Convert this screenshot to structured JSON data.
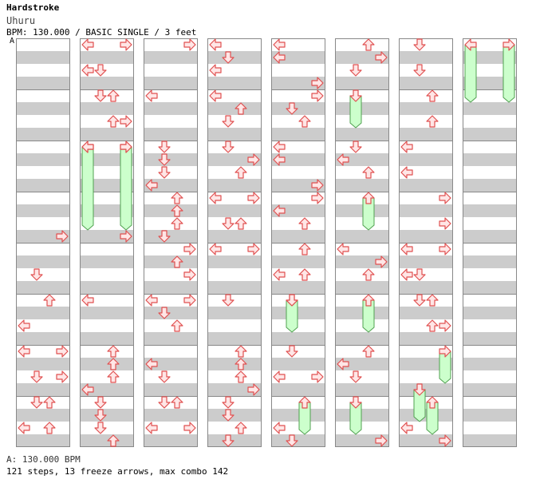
{
  "header": {
    "title": "Hardstroke",
    "subtitle": "Uhuru",
    "bpm_line": "BPM: 130.000 / BASIC SINGLE / 3 feet",
    "marker": "A"
  },
  "footer": {
    "bpm_marker": "A: 130.000 BPM",
    "stats": "121 steps, 13 freeze arrows, max combo 142"
  },
  "colors": {
    "stripe": "#cccccc",
    "border": "#888888",
    "arrow_fill": "#ffe6e6",
    "arrow_stroke": "#e05050",
    "freeze_fill": "#ccffcc",
    "freeze_stroke": "#50a050"
  },
  "chart": {
    "columns": 8,
    "measures_per_column": 8,
    "lanes": [
      "left",
      "down",
      "up",
      "right"
    ],
    "notes": [
      {
        "col": 0,
        "row": 15,
        "dir": "right"
      },
      {
        "col": 0,
        "row": 18,
        "dir": "down"
      },
      {
        "col": 0,
        "row": 20,
        "dir": "up"
      },
      {
        "col": 0,
        "row": 22,
        "dir": "left"
      },
      {
        "col": 0,
        "row": 24,
        "dir": "left"
      },
      {
        "col": 0,
        "row": 24,
        "dir": "right"
      },
      {
        "col": 0,
        "row": 26,
        "dir": "down"
      },
      {
        "col": 0,
        "row": 26,
        "dir": "right"
      },
      {
        "col": 0,
        "row": 28,
        "dir": "down"
      },
      {
        "col": 0,
        "row": 28,
        "dir": "up"
      },
      {
        "col": 0,
        "row": 30,
        "dir": "left"
      },
      {
        "col": 0,
        "row": 30,
        "dir": "up"
      },
      {
        "col": 1,
        "row": 0,
        "dir": "left"
      },
      {
        "col": 1,
        "row": 0,
        "dir": "right"
      },
      {
        "col": 1,
        "row": 2,
        "dir": "left"
      },
      {
        "col": 1,
        "row": 2,
        "dir": "down"
      },
      {
        "col": 1,
        "row": 4,
        "dir": "down"
      },
      {
        "col": 1,
        "row": 4,
        "dir": "up"
      },
      {
        "col": 1,
        "row": 6,
        "dir": "up"
      },
      {
        "col": 1,
        "row": 6,
        "dir": "right"
      },
      {
        "col": 1,
        "row": 8,
        "dir": "left"
      },
      {
        "col": 1,
        "row": 8,
        "dir": "right"
      },
      {
        "col": 1,
        "row": 15,
        "dir": "right"
      },
      {
        "col": 1,
        "row": 20,
        "dir": "left"
      },
      {
        "col": 1,
        "row": 24,
        "dir": "up"
      },
      {
        "col": 1,
        "row": 25,
        "dir": "up"
      },
      {
        "col": 1,
        "row": 26,
        "dir": "up"
      },
      {
        "col": 1,
        "row": 27,
        "dir": "left"
      },
      {
        "col": 1,
        "row": 28,
        "dir": "down"
      },
      {
        "col": 1,
        "row": 29,
        "dir": "down"
      },
      {
        "col": 1,
        "row": 30,
        "dir": "down"
      },
      {
        "col": 1,
        "row": 31,
        "dir": "up"
      },
      {
        "col": 2,
        "row": 0,
        "dir": "right"
      },
      {
        "col": 2,
        "row": 4,
        "dir": "left"
      },
      {
        "col": 2,
        "row": 8,
        "dir": "down"
      },
      {
        "col": 2,
        "row": 9,
        "dir": "down"
      },
      {
        "col": 2,
        "row": 10,
        "dir": "down"
      },
      {
        "col": 2,
        "row": 11,
        "dir": "left"
      },
      {
        "col": 2,
        "row": 12,
        "dir": "up"
      },
      {
        "col": 2,
        "row": 13,
        "dir": "up"
      },
      {
        "col": 2,
        "row": 14,
        "dir": "up"
      },
      {
        "col": 2,
        "row": 15,
        "dir": "down"
      },
      {
        "col": 2,
        "row": 16,
        "dir": "right"
      },
      {
        "col": 2,
        "row": 17,
        "dir": "up"
      },
      {
        "col": 2,
        "row": 18,
        "dir": "right"
      },
      {
        "col": 2,
        "row": 20,
        "dir": "left"
      },
      {
        "col": 2,
        "row": 20,
        "dir": "right"
      },
      {
        "col": 2,
        "row": 21,
        "dir": "down"
      },
      {
        "col": 2,
        "row": 22,
        "dir": "up"
      },
      {
        "col": 2,
        "row": 25,
        "dir": "left"
      },
      {
        "col": 2,
        "row": 26,
        "dir": "down"
      },
      {
        "col": 2,
        "row": 28,
        "dir": "down"
      },
      {
        "col": 2,
        "row": 28,
        "dir": "up"
      },
      {
        "col": 2,
        "row": 30,
        "dir": "left"
      },
      {
        "col": 2,
        "row": 30,
        "dir": "right"
      },
      {
        "col": 3,
        "row": 0,
        "dir": "left"
      },
      {
        "col": 3,
        "row": 1,
        "dir": "down"
      },
      {
        "col": 3,
        "row": 2,
        "dir": "left"
      },
      {
        "col": 3,
        "row": 4,
        "dir": "left"
      },
      {
        "col": 3,
        "row": 5,
        "dir": "up"
      },
      {
        "col": 3,
        "row": 6,
        "dir": "down"
      },
      {
        "col": 3,
        "row": 8,
        "dir": "down"
      },
      {
        "col": 3,
        "row": 9,
        "dir": "right"
      },
      {
        "col": 3,
        "row": 10,
        "dir": "up"
      },
      {
        "col": 3,
        "row": 12,
        "dir": "left"
      },
      {
        "col": 3,
        "row": 12,
        "dir": "right"
      },
      {
        "col": 3,
        "row": 14,
        "dir": "down"
      },
      {
        "col": 3,
        "row": 14,
        "dir": "up"
      },
      {
        "col": 3,
        "row": 16,
        "dir": "left"
      },
      {
        "col": 3,
        "row": 16,
        "dir": "right"
      },
      {
        "col": 3,
        "row": 20,
        "dir": "down"
      },
      {
        "col": 3,
        "row": 24,
        "dir": "up"
      },
      {
        "col": 3,
        "row": 25,
        "dir": "up"
      },
      {
        "col": 3,
        "row": 26,
        "dir": "up"
      },
      {
        "col": 3,
        "row": 27,
        "dir": "right"
      },
      {
        "col": 3,
        "row": 28,
        "dir": "down"
      },
      {
        "col": 3,
        "row": 29,
        "dir": "down"
      },
      {
        "col": 3,
        "row": 30,
        "dir": "up"
      },
      {
        "col": 3,
        "row": 31,
        "dir": "down"
      },
      {
        "col": 4,
        "row": 0,
        "dir": "left"
      },
      {
        "col": 4,
        "row": 1,
        "dir": "left"
      },
      {
        "col": 4,
        "row": 3,
        "dir": "right"
      },
      {
        "col": 4,
        "row": 4,
        "dir": "right"
      },
      {
        "col": 4,
        "row": 5,
        "dir": "down"
      },
      {
        "col": 4,
        "row": 6,
        "dir": "up"
      },
      {
        "col": 4,
        "row": 8,
        "dir": "left"
      },
      {
        "col": 4,
        "row": 9,
        "dir": "left"
      },
      {
        "col": 4,
        "row": 11,
        "dir": "right"
      },
      {
        "col": 4,
        "row": 12,
        "dir": "right"
      },
      {
        "col": 4,
        "row": 13,
        "dir": "left"
      },
      {
        "col": 4,
        "row": 14,
        "dir": "up"
      },
      {
        "col": 4,
        "row": 16,
        "dir": "up"
      },
      {
        "col": 4,
        "row": 18,
        "dir": "left"
      },
      {
        "col": 4,
        "row": 18,
        "dir": "up"
      },
      {
        "col": 4,
        "row": 20,
        "dir": "down"
      },
      {
        "col": 4,
        "row": 24,
        "dir": "down"
      },
      {
        "col": 4,
        "row": 26,
        "dir": "left"
      },
      {
        "col": 4,
        "row": 26,
        "dir": "right"
      },
      {
        "col": 4,
        "row": 30,
        "dir": "left"
      },
      {
        "col": 4,
        "row": 31,
        "dir": "down"
      },
      {
        "col": 5,
        "row": 0,
        "dir": "up"
      },
      {
        "col": 5,
        "row": 1,
        "dir": "right"
      },
      {
        "col": 5,
        "row": 2,
        "dir": "down"
      },
      {
        "col": 5,
        "row": 8,
        "dir": "down"
      },
      {
        "col": 5,
        "row": 9,
        "dir": "left"
      },
      {
        "col": 5,
        "row": 10,
        "dir": "up"
      },
      {
        "col": 5,
        "row": 16,
        "dir": "left"
      },
      {
        "col": 5,
        "row": 17,
        "dir": "right"
      },
      {
        "col": 5,
        "row": 18,
        "dir": "up"
      },
      {
        "col": 5,
        "row": 24,
        "dir": "up"
      },
      {
        "col": 5,
        "row": 25,
        "dir": "left"
      },
      {
        "col": 5,
        "row": 26,
        "dir": "down"
      },
      {
        "col": 5,
        "row": 31,
        "dir": "right"
      },
      {
        "col": 6,
        "row": 0,
        "dir": "down"
      },
      {
        "col": 6,
        "row": 2,
        "dir": "down"
      },
      {
        "col": 6,
        "row": 4,
        "dir": "up"
      },
      {
        "col": 6,
        "row": 6,
        "dir": "up"
      },
      {
        "col": 6,
        "row": 8,
        "dir": "left"
      },
      {
        "col": 6,
        "row": 10,
        "dir": "left"
      },
      {
        "col": 6,
        "row": 12,
        "dir": "right"
      },
      {
        "col": 6,
        "row": 14,
        "dir": "right"
      },
      {
        "col": 6,
        "row": 16,
        "dir": "left"
      },
      {
        "col": 6,
        "row": 16,
        "dir": "right"
      },
      {
        "col": 6,
        "row": 18,
        "dir": "left"
      },
      {
        "col": 6,
        "row": 18,
        "dir": "down"
      },
      {
        "col": 6,
        "row": 20,
        "dir": "down"
      },
      {
        "col": 6,
        "row": 20,
        "dir": "up"
      },
      {
        "col": 6,
        "row": 22,
        "dir": "up"
      },
      {
        "col": 6,
        "row": 22,
        "dir": "right"
      },
      {
        "col": 6,
        "row": 30,
        "dir": "left"
      },
      {
        "col": 6,
        "row": 31,
        "dir": "right"
      }
    ],
    "freezes": [
      {
        "col": 1,
        "start": 8,
        "end": 14,
        "dir": "left"
      },
      {
        "col": 1,
        "start": 8,
        "end": 14,
        "dir": "right"
      },
      {
        "col": 4,
        "start": 20,
        "end": 22,
        "dir": "down"
      },
      {
        "col": 4,
        "start": 28,
        "end": 30,
        "dir": "up"
      },
      {
        "col": 5,
        "start": 4,
        "end": 6,
        "dir": "down"
      },
      {
        "col": 5,
        "start": 12,
        "end": 14,
        "dir": "up"
      },
      {
        "col": 5,
        "start": 20,
        "end": 22,
        "dir": "up"
      },
      {
        "col": 5,
        "start": 28,
        "end": 30,
        "dir": "down"
      },
      {
        "col": 6,
        "start": 24,
        "end": 26,
        "dir": "right"
      },
      {
        "col": 6,
        "start": 27,
        "end": 29,
        "dir": "down"
      },
      {
        "col": 6,
        "start": 28,
        "end": 30,
        "dir": "up"
      },
      {
        "col": 7,
        "start": 0,
        "end": 4,
        "dir": "left"
      },
      {
        "col": 7,
        "start": 0,
        "end": 4,
        "dir": "right"
      }
    ]
  }
}
